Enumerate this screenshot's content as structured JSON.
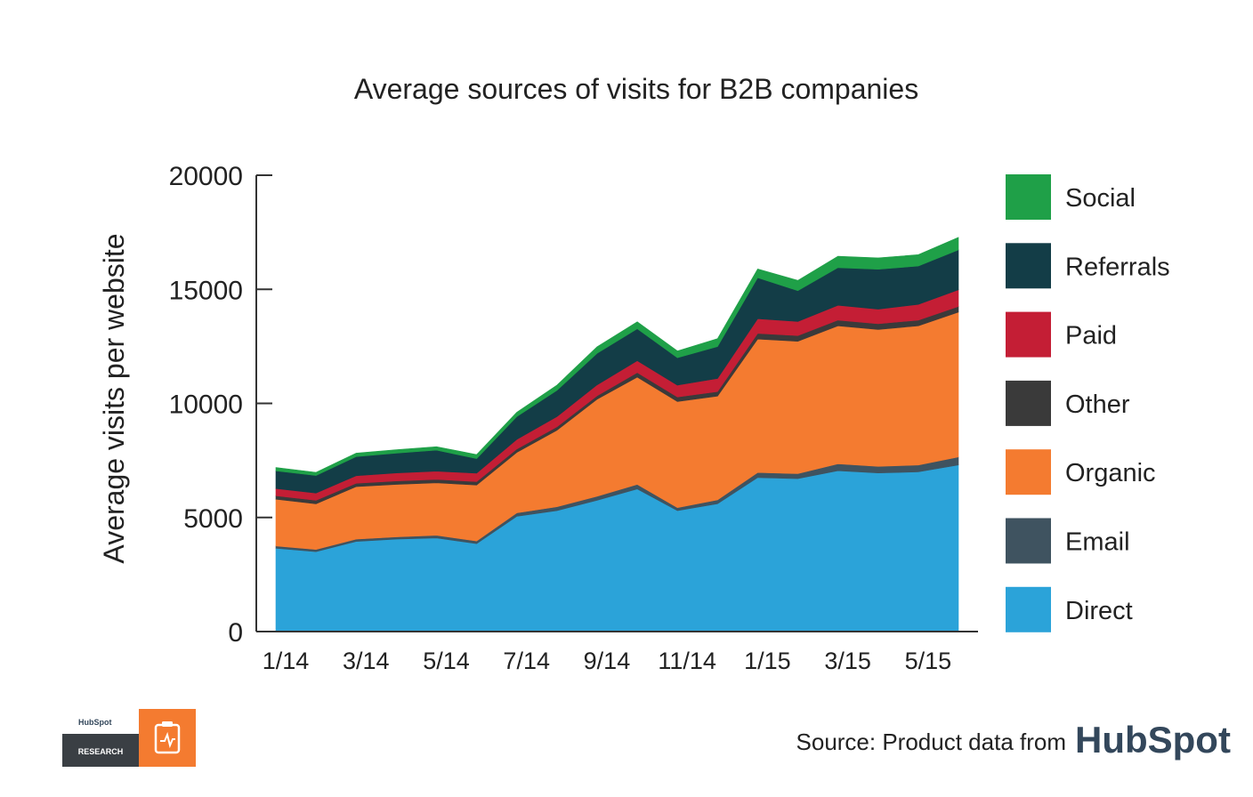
{
  "chart_data": {
    "type": "area",
    "stacked": true,
    "title": "Average sources of visits for B2B companies",
    "ylabel": "Average visits per website",
    "xlabel": "",
    "ylim": [
      0,
      20000
    ],
    "yticks": [
      "0",
      "5000",
      "10000",
      "15000",
      "20000"
    ],
    "x_tick_labels": [
      "1/14",
      "3/14",
      "5/14",
      "7/14",
      "9/14",
      "11/14",
      "1/15",
      "3/15",
      "5/15"
    ],
    "x": [
      "1/14",
      "2/14",
      "3/14",
      "4/14",
      "5/14",
      "6/14",
      "7/14",
      "8/14",
      "9/14",
      "10/14",
      "11/14",
      "12/14",
      "1/15",
      "2/15",
      "3/15",
      "4/15",
      "5/15",
      "6/15"
    ],
    "grid": false,
    "legend_position": "right",
    "series": [
      {
        "name": "Direct",
        "color": "#2ba3d9",
        "values": [
          3650,
          3500,
          3950,
          4050,
          4100,
          3850,
          5050,
          5300,
          5750,
          6250,
          5300,
          5600,
          6750,
          6700,
          7050,
          6950,
          7000,
          7300
        ]
      },
      {
        "name": "Email",
        "color": "#3f5360",
        "values": [
          100,
          100,
          100,
          100,
          120,
          120,
          150,
          170,
          180,
          200,
          130,
          170,
          220,
          220,
          300,
          290,
          300,
          350
        ]
      },
      {
        "name": "Organic",
        "color": "#f47b30",
        "values": [
          2050,
          2000,
          2300,
          2300,
          2300,
          2450,
          2650,
          3350,
          4250,
          4700,
          4650,
          4550,
          5850,
          5800,
          6050,
          6000,
          6100,
          6350
        ]
      },
      {
        "name": "Other",
        "color": "#3a3a3a",
        "values": [
          150,
          150,
          150,
          150,
          150,
          150,
          150,
          150,
          150,
          200,
          200,
          200,
          250,
          250,
          250,
          250,
          250,
          250
        ]
      },
      {
        "name": "Paid",
        "color": "#c41e35",
        "values": [
          320,
          320,
          330,
          350,
          360,
          370,
          420,
          450,
          480,
          520,
          520,
          570,
          640,
          620,
          650,
          640,
          690,
          730
        ]
      },
      {
        "name": "Referrals",
        "color": "#133d47",
        "values": [
          770,
          770,
          840,
          870,
          920,
          640,
          1000,
          1150,
          1380,
          1400,
          1200,
          1400,
          1800,
          1350,
          1650,
          1750,
          1680,
          1750
        ]
      },
      {
        "name": "Social",
        "color": "#1fa048",
        "values": [
          150,
          140,
          150,
          150,
          150,
          180,
          190,
          230,
          290,
          310,
          300,
          350,
          380,
          450,
          500,
          500,
          500,
          550
        ]
      }
    ],
    "source": "Source: Product data from",
    "brand": "HubSpot",
    "badge": {
      "top": "HubSpot",
      "bottom": "RESEARCH"
    }
  }
}
